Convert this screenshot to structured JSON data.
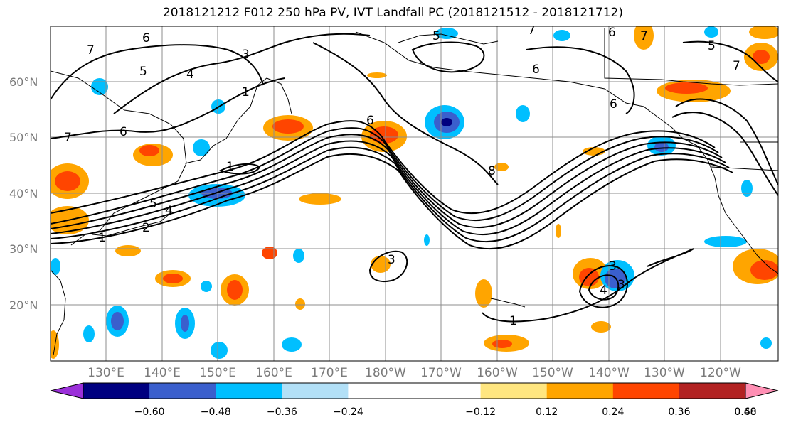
{
  "title": "2018121212 F012 250 hPa PV, IVT Landfall PC (2018121512 - 2018121712)",
  "lat_labels": [
    "60°N",
    "50°N",
    "40°N",
    "30°N",
    "20°N"
  ],
  "lon_labels": [
    "130°E",
    "140°E",
    "150°E",
    "160°E",
    "170°E",
    "180°W",
    "170°W",
    "160°W",
    "150°W",
    "140°W",
    "130°W",
    "120°W"
  ],
  "colorbar": {
    "colors": [
      "#9b30d9",
      "#000080",
      "#3a5fcd",
      "#00bfff",
      "#b2e0f7",
      "#ffffff",
      "#ffffff",
      "#ffe680",
      "#ffa500",
      "#ff4500",
      "#b22222",
      "#ff8fb4"
    ],
    "tick_labels": [
      "−0.60",
      "−0.48",
      "−0.36",
      "−0.24",
      "−0.12",
      "0.12",
      "0.24",
      "0.36",
      "0.48",
      "0.60"
    ]
  },
  "contour_labels": [
    "7",
    "6",
    "5",
    "3",
    "4",
    "7",
    "7",
    "6",
    "5",
    "6",
    "7",
    "6",
    "5",
    "4",
    "1",
    "2",
    "6",
    "8",
    "1",
    "7",
    "6",
    "5",
    "1",
    "3",
    "1",
    "3",
    "3",
    "4"
  ]
}
